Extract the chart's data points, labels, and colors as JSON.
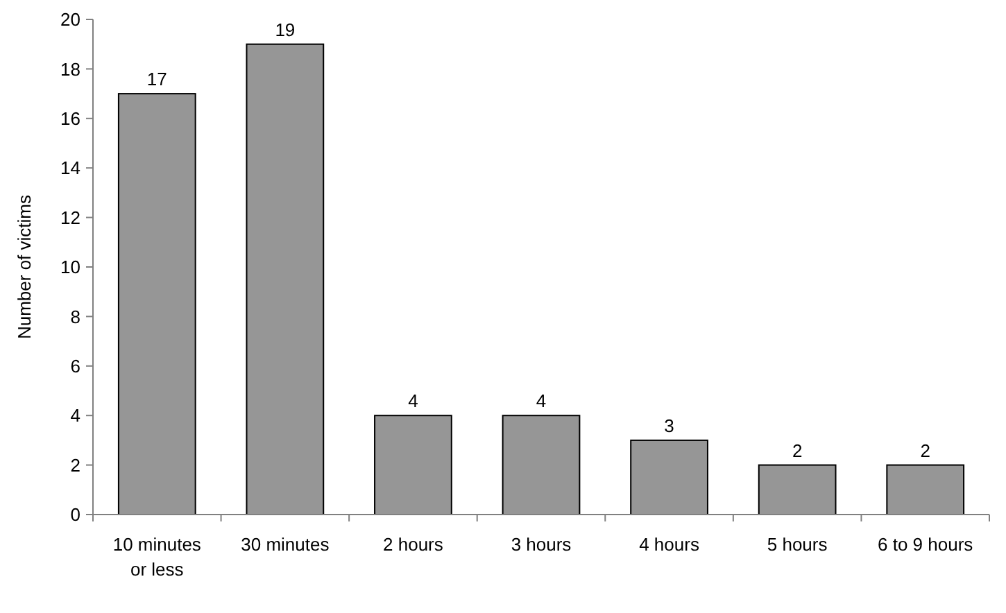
{
  "chart_data": {
    "type": "bar",
    "ylabel": "Number of victims",
    "categories": [
      "10 minutes or less",
      "30 minutes",
      "2 hours",
      "3 hours",
      "4 hours",
      "5 hours",
      "6 to 9 hours"
    ],
    "values": [
      17,
      19,
      4,
      4,
      3,
      2,
      2
    ],
    "color": "#969696",
    "ylim": [
      0,
      20
    ],
    "yticks": [
      0,
      2,
      4,
      6,
      8,
      10,
      12,
      14,
      16,
      18,
      20
    ],
    "grid": false,
    "data_labels": true
  }
}
